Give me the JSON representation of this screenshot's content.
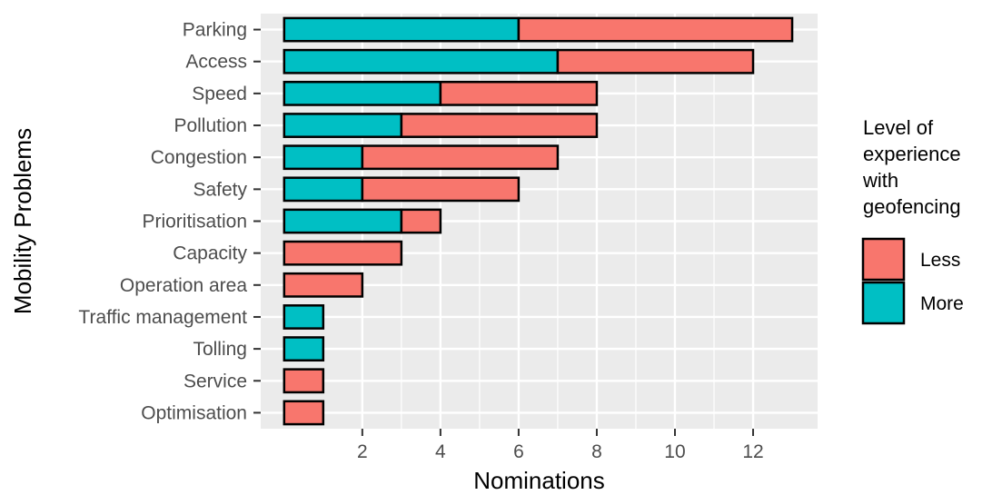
{
  "chart_data": {
    "type": "bar",
    "orientation": "horizontal",
    "stacked": true,
    "categories": [
      "Parking",
      "Access",
      "Speed",
      "Pollution",
      "Congestion",
      "Safety",
      "Prioritisation",
      "Capacity",
      "Operation area",
      "Traffic management",
      "Tolling",
      "Service",
      "Optimisation"
    ],
    "series": [
      {
        "name": "More",
        "color": "#00BFC4",
        "values": [
          6,
          7,
          4,
          3,
          2,
          2,
          3,
          0,
          0,
          1,
          1,
          0,
          0
        ]
      },
      {
        "name": "Less",
        "color": "#F8766D",
        "values": [
          7,
          5,
          4,
          5,
          5,
          4,
          1,
          3,
          2,
          0,
          0,
          1,
          1
        ]
      }
    ],
    "xlabel": "Nominations",
    "ylabel": "Mobility Problems",
    "xlim": [
      -0.6,
      13.65
    ],
    "x_ticks": [
      2,
      4,
      6,
      8,
      10,
      12
    ],
    "grid": true,
    "legend": {
      "position": "right",
      "title_lines": [
        "Level of",
        "experience",
        "with",
        "geofencing"
      ],
      "entries": [
        {
          "label": "Less",
          "color": "#F8766D"
        },
        {
          "label": "More",
          "color": "#00BFC4"
        }
      ]
    }
  }
}
